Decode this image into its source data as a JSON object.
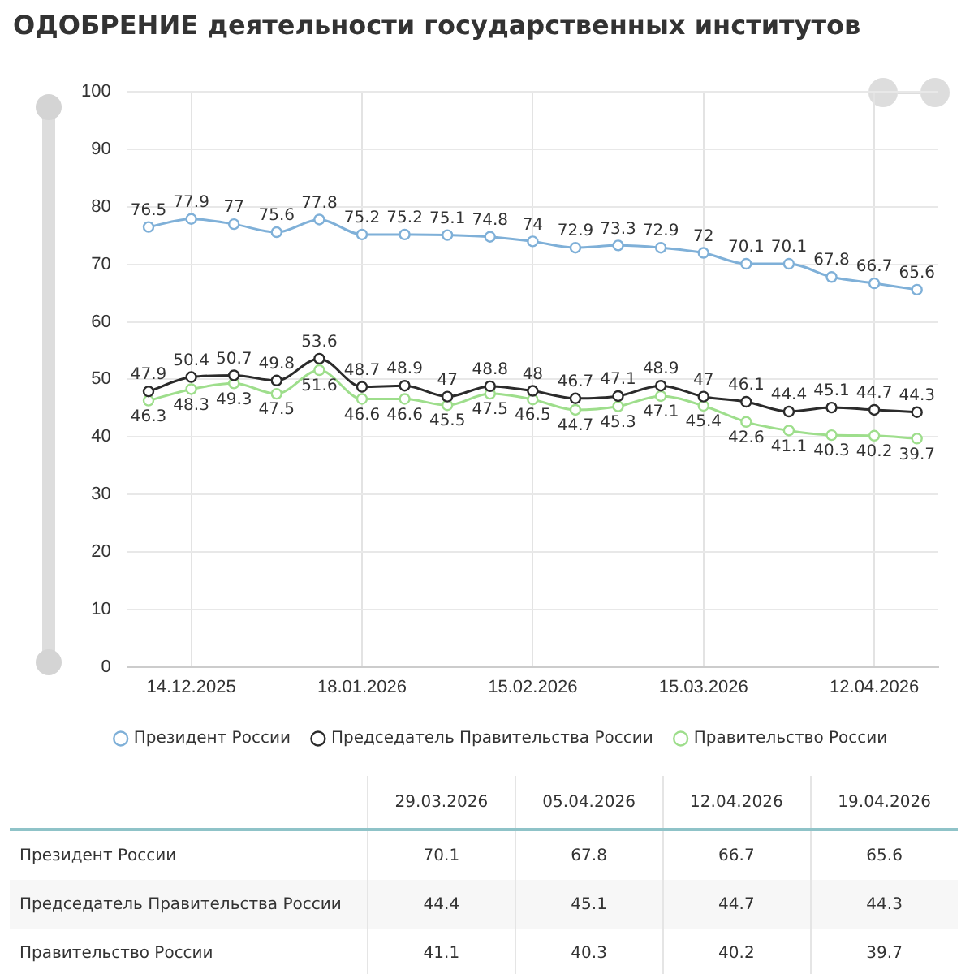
{
  "chart_data": [
    {
      "type": "line",
      "title": "ОДОБРЕНИЕ деятельности государственных институтов",
      "categories": [
        null,
        "14.12.2025",
        null,
        null,
        null,
        "18.01.2026",
        null,
        null,
        null,
        "15.02.2026",
        null,
        null,
        null,
        "15.03.2026",
        null,
        null,
        null,
        "12.04.2026",
        null
      ],
      "series": [
        {
          "name": "Президент России",
          "color": "#7fb0d8",
          "values": [
            76.5,
            77.9,
            77,
            75.6,
            77.8,
            75.2,
            75.2,
            75.1,
            74.8,
            74,
            72.9,
            73.3,
            72.9,
            72,
            70.1,
            70.1,
            67.8,
            66.7,
            65.6
          ]
        },
        {
          "name": "Председатель Правительства России",
          "color": "#2b2b2b",
          "values": [
            47.9,
            50.4,
            50.7,
            49.8,
            53.6,
            48.7,
            48.9,
            47,
            48.8,
            48,
            46.7,
            47.1,
            48.9,
            47,
            46.1,
            44.4,
            45.1,
            44.7,
            44.3
          ]
        },
        {
          "name": "Правительство России",
          "color": "#9ede8c",
          "values": [
            46.3,
            48.3,
            49.3,
            47.5,
            51.6,
            46.6,
            46.6,
            45.5,
            47.5,
            46.5,
            44.7,
            45.3,
            47.1,
            45.4,
            42.6,
            41.1,
            40.3,
            40.2,
            39.7
          ]
        }
      ],
      "ylim": [
        0,
        100
      ],
      "yticks": [
        0,
        10,
        20,
        30,
        40,
        50,
        60,
        70,
        80,
        90,
        100
      ],
      "grid": true,
      "legend": "bottom",
      "marker": "circle",
      "line_style": "solid",
      "data_labels": true
    },
    {
      "type": "other",
      "categories": [
        "29.03.2026",
        "05.04.2026",
        "12.04.2026",
        "19.04.2026"
      ],
      "series": [
        {
          "name": "Президент России",
          "values": [
            70.1,
            67.8,
            66.7,
            65.6
          ]
        },
        {
          "name": "Председатель Правительства России",
          "values": [
            44.4,
            45.1,
            44.7,
            44.3
          ]
        },
        {
          "name": "Правительство России",
          "values": [
            41.1,
            40.3,
            40.2,
            39.7
          ]
        }
      ],
      "data_labels": true
    }
  ]
}
